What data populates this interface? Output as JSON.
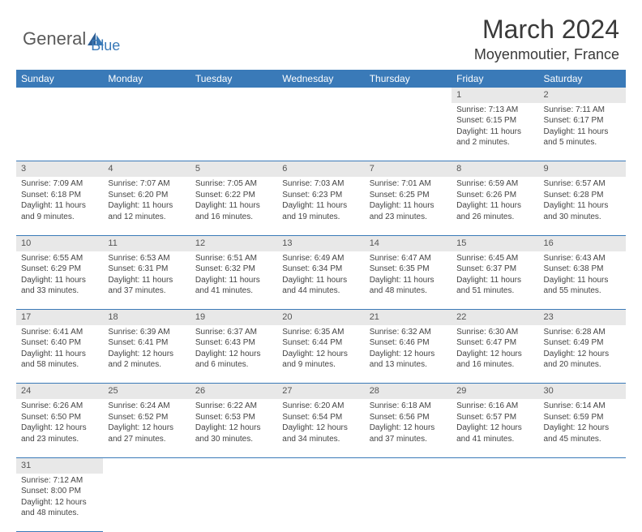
{
  "logo": {
    "text1": "General",
    "text2": "Blue"
  },
  "title": "March 2024",
  "location": "Moyenmoutier, France",
  "colors": {
    "header_bg": "#3a7ab8",
    "header_text": "#ffffff",
    "daynum_bg": "#e8e8e8",
    "cell_border": "#3a7ab8",
    "body_text": "#444444"
  },
  "weekdays": [
    "Sunday",
    "Monday",
    "Tuesday",
    "Wednesday",
    "Thursday",
    "Friday",
    "Saturday"
  ],
  "weeks": [
    [
      null,
      null,
      null,
      null,
      null,
      {
        "n": "1",
        "sr": "Sunrise: 7:13 AM",
        "ss": "Sunset: 6:15 PM",
        "d1": "Daylight: 11 hours",
        "d2": "and 2 minutes."
      },
      {
        "n": "2",
        "sr": "Sunrise: 7:11 AM",
        "ss": "Sunset: 6:17 PM",
        "d1": "Daylight: 11 hours",
        "d2": "and 5 minutes."
      }
    ],
    [
      {
        "n": "3",
        "sr": "Sunrise: 7:09 AM",
        "ss": "Sunset: 6:18 PM",
        "d1": "Daylight: 11 hours",
        "d2": "and 9 minutes."
      },
      {
        "n": "4",
        "sr": "Sunrise: 7:07 AM",
        "ss": "Sunset: 6:20 PM",
        "d1": "Daylight: 11 hours",
        "d2": "and 12 minutes."
      },
      {
        "n": "5",
        "sr": "Sunrise: 7:05 AM",
        "ss": "Sunset: 6:22 PM",
        "d1": "Daylight: 11 hours",
        "d2": "and 16 minutes."
      },
      {
        "n": "6",
        "sr": "Sunrise: 7:03 AM",
        "ss": "Sunset: 6:23 PM",
        "d1": "Daylight: 11 hours",
        "d2": "and 19 minutes."
      },
      {
        "n": "7",
        "sr": "Sunrise: 7:01 AM",
        "ss": "Sunset: 6:25 PM",
        "d1": "Daylight: 11 hours",
        "d2": "and 23 minutes."
      },
      {
        "n": "8",
        "sr": "Sunrise: 6:59 AM",
        "ss": "Sunset: 6:26 PM",
        "d1": "Daylight: 11 hours",
        "d2": "and 26 minutes."
      },
      {
        "n": "9",
        "sr": "Sunrise: 6:57 AM",
        "ss": "Sunset: 6:28 PM",
        "d1": "Daylight: 11 hours",
        "d2": "and 30 minutes."
      }
    ],
    [
      {
        "n": "10",
        "sr": "Sunrise: 6:55 AM",
        "ss": "Sunset: 6:29 PM",
        "d1": "Daylight: 11 hours",
        "d2": "and 33 minutes."
      },
      {
        "n": "11",
        "sr": "Sunrise: 6:53 AM",
        "ss": "Sunset: 6:31 PM",
        "d1": "Daylight: 11 hours",
        "d2": "and 37 minutes."
      },
      {
        "n": "12",
        "sr": "Sunrise: 6:51 AM",
        "ss": "Sunset: 6:32 PM",
        "d1": "Daylight: 11 hours",
        "d2": "and 41 minutes."
      },
      {
        "n": "13",
        "sr": "Sunrise: 6:49 AM",
        "ss": "Sunset: 6:34 PM",
        "d1": "Daylight: 11 hours",
        "d2": "and 44 minutes."
      },
      {
        "n": "14",
        "sr": "Sunrise: 6:47 AM",
        "ss": "Sunset: 6:35 PM",
        "d1": "Daylight: 11 hours",
        "d2": "and 48 minutes."
      },
      {
        "n": "15",
        "sr": "Sunrise: 6:45 AM",
        "ss": "Sunset: 6:37 PM",
        "d1": "Daylight: 11 hours",
        "d2": "and 51 minutes."
      },
      {
        "n": "16",
        "sr": "Sunrise: 6:43 AM",
        "ss": "Sunset: 6:38 PM",
        "d1": "Daylight: 11 hours",
        "d2": "and 55 minutes."
      }
    ],
    [
      {
        "n": "17",
        "sr": "Sunrise: 6:41 AM",
        "ss": "Sunset: 6:40 PM",
        "d1": "Daylight: 11 hours",
        "d2": "and 58 minutes."
      },
      {
        "n": "18",
        "sr": "Sunrise: 6:39 AM",
        "ss": "Sunset: 6:41 PM",
        "d1": "Daylight: 12 hours",
        "d2": "and 2 minutes."
      },
      {
        "n": "19",
        "sr": "Sunrise: 6:37 AM",
        "ss": "Sunset: 6:43 PM",
        "d1": "Daylight: 12 hours",
        "d2": "and 6 minutes."
      },
      {
        "n": "20",
        "sr": "Sunrise: 6:35 AM",
        "ss": "Sunset: 6:44 PM",
        "d1": "Daylight: 12 hours",
        "d2": "and 9 minutes."
      },
      {
        "n": "21",
        "sr": "Sunrise: 6:32 AM",
        "ss": "Sunset: 6:46 PM",
        "d1": "Daylight: 12 hours",
        "d2": "and 13 minutes."
      },
      {
        "n": "22",
        "sr": "Sunrise: 6:30 AM",
        "ss": "Sunset: 6:47 PM",
        "d1": "Daylight: 12 hours",
        "d2": "and 16 minutes."
      },
      {
        "n": "23",
        "sr": "Sunrise: 6:28 AM",
        "ss": "Sunset: 6:49 PM",
        "d1": "Daylight: 12 hours",
        "d2": "and 20 minutes."
      }
    ],
    [
      {
        "n": "24",
        "sr": "Sunrise: 6:26 AM",
        "ss": "Sunset: 6:50 PM",
        "d1": "Daylight: 12 hours",
        "d2": "and 23 minutes."
      },
      {
        "n": "25",
        "sr": "Sunrise: 6:24 AM",
        "ss": "Sunset: 6:52 PM",
        "d1": "Daylight: 12 hours",
        "d2": "and 27 minutes."
      },
      {
        "n": "26",
        "sr": "Sunrise: 6:22 AM",
        "ss": "Sunset: 6:53 PM",
        "d1": "Daylight: 12 hours",
        "d2": "and 30 minutes."
      },
      {
        "n": "27",
        "sr": "Sunrise: 6:20 AM",
        "ss": "Sunset: 6:54 PM",
        "d1": "Daylight: 12 hours",
        "d2": "and 34 minutes."
      },
      {
        "n": "28",
        "sr": "Sunrise: 6:18 AM",
        "ss": "Sunset: 6:56 PM",
        "d1": "Daylight: 12 hours",
        "d2": "and 37 minutes."
      },
      {
        "n": "29",
        "sr": "Sunrise: 6:16 AM",
        "ss": "Sunset: 6:57 PM",
        "d1": "Daylight: 12 hours",
        "d2": "and 41 minutes."
      },
      {
        "n": "30",
        "sr": "Sunrise: 6:14 AM",
        "ss": "Sunset: 6:59 PM",
        "d1": "Daylight: 12 hours",
        "d2": "and 45 minutes."
      }
    ],
    [
      {
        "n": "31",
        "sr": "Sunrise: 7:12 AM",
        "ss": "Sunset: 8:00 PM",
        "d1": "Daylight: 12 hours",
        "d2": "and 48 minutes."
      },
      null,
      null,
      null,
      null,
      null,
      null
    ]
  ]
}
